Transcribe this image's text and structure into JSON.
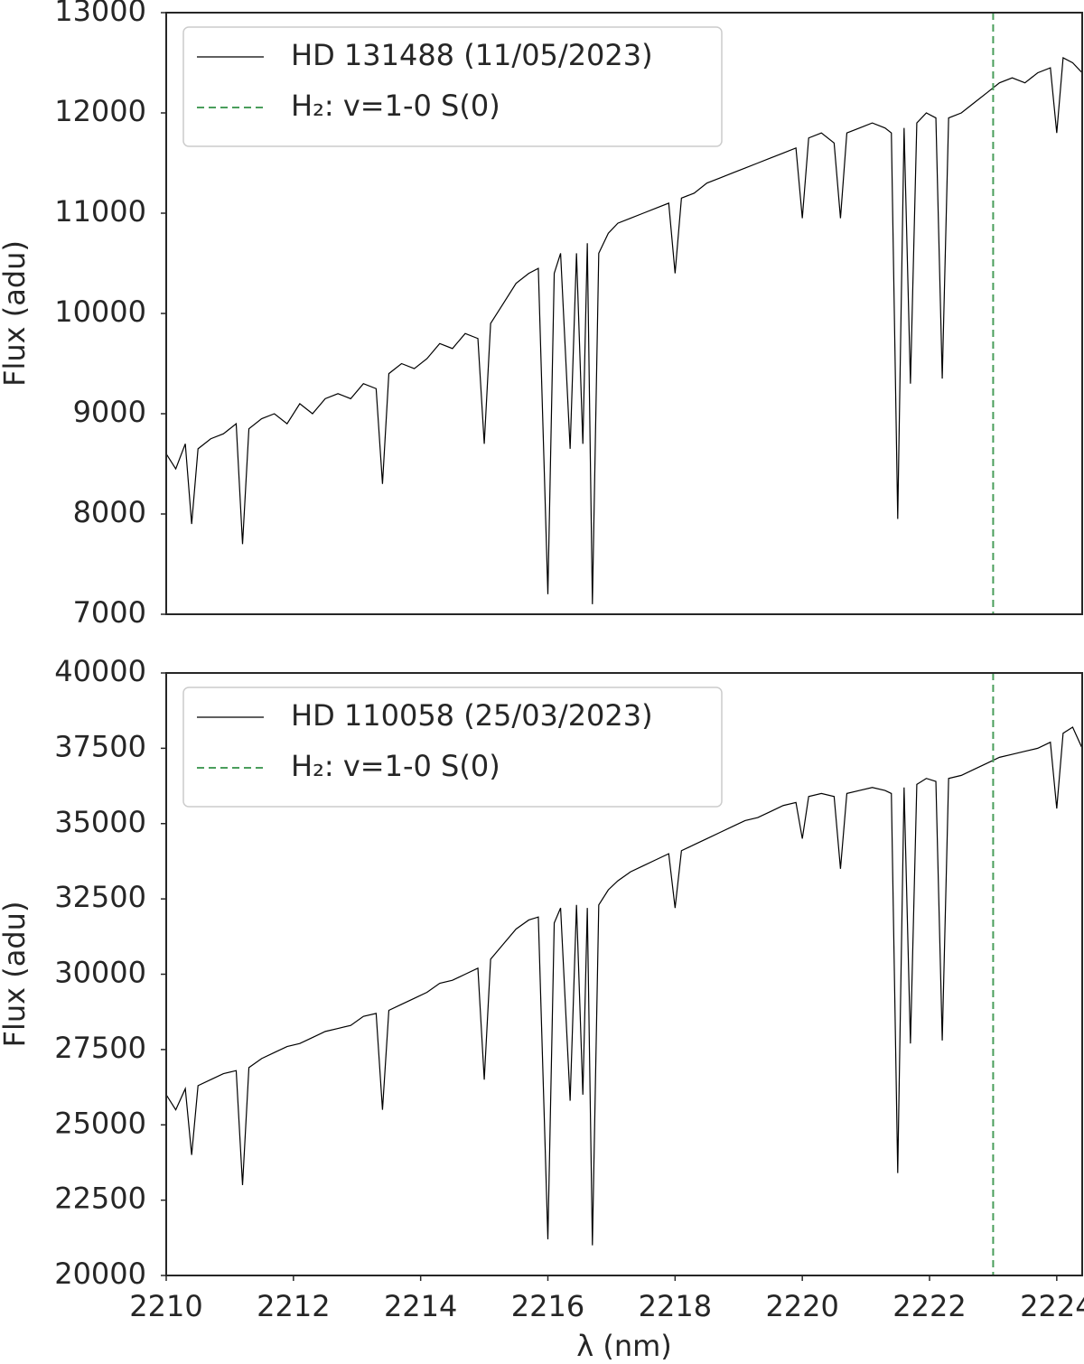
{
  "chart_data": [
    {
      "type": "line",
      "ylabel": "Flux (adu)",
      "xlim": [
        2210,
        2224.4
      ],
      "ylim": [
        7000,
        13000
      ],
      "yticks": [
        7000,
        8000,
        9000,
        10000,
        11000,
        12000,
        13000
      ],
      "legend": "upper left",
      "x": [
        2210.0,
        2210.15,
        2210.3,
        2210.4,
        2210.5,
        2210.7,
        2210.9,
        2211.1,
        2211.2,
        2211.3,
        2211.5,
        2211.7,
        2211.9,
        2212.1,
        2212.3,
        2212.5,
        2212.7,
        2212.9,
        2213.1,
        2213.3,
        2213.4,
        2213.5,
        2213.7,
        2213.9,
        2214.1,
        2214.3,
        2214.5,
        2214.7,
        2214.9,
        2215.0,
        2215.1,
        2215.3,
        2215.5,
        2215.7,
        2215.85,
        2216.0,
        2216.1,
        2216.2,
        2216.35,
        2216.45,
        2216.55,
        2216.62,
        2216.7,
        2216.8,
        2216.95,
        2217.1,
        2217.3,
        2217.5,
        2217.7,
        2217.9,
        2218.0,
        2218.1,
        2218.3,
        2218.5,
        2218.7,
        2218.9,
        2219.1,
        2219.3,
        2219.5,
        2219.7,
        2219.9,
        2220.0,
        2220.1,
        2220.3,
        2220.5,
        2220.6,
        2220.7,
        2220.9,
        2221.1,
        2221.3,
        2221.4,
        2221.5,
        2221.6,
        2221.7,
        2221.8,
        2221.95,
        2222.1,
        2222.2,
        2222.3,
        2222.5,
        2222.7,
        2222.9,
        2223.1,
        2223.3,
        2223.5,
        2223.7,
        2223.9,
        2224.0,
        2224.1,
        2224.25,
        2224.4
      ],
      "series": [
        {
          "name": "HD 131488 (11/05/2023)",
          "color": "#000000",
          "values": [
            8600,
            8450,
            8700,
            7900,
            8650,
            8750,
            8800,
            8900,
            7700,
            8850,
            8950,
            9000,
            8900,
            9100,
            9000,
            9150,
            9200,
            9150,
            9300,
            9250,
            8300,
            9400,
            9500,
            9450,
            9550,
            9700,
            9650,
            9800,
            9750,
            8700,
            9900,
            10100,
            10300,
            10400,
            10450,
            7200,
            10400,
            10600,
            8650,
            10600,
            8700,
            10700,
            7100,
            10600,
            10800,
            10900,
            10950,
            11000,
            11050,
            11100,
            10400,
            11150,
            11200,
            11300,
            11350,
            11400,
            11450,
            11500,
            11550,
            11600,
            11650,
            10950,
            11750,
            11800,
            11700,
            10950,
            11800,
            11850,
            11900,
            11850,
            11800,
            7950,
            11850,
            9300,
            11900,
            12000,
            11950,
            9350,
            11950,
            12000,
            12100,
            12200,
            12300,
            12350,
            12300,
            12400,
            12450,
            11800,
            12550,
            12500,
            12400
          ]
        }
      ],
      "vlines": [
        {
          "name": "H₂: v=1-0 S(0)",
          "x": 2223,
          "color": "#4a9e5c"
        }
      ]
    },
    {
      "type": "line",
      "xlabel": "λ (nm)",
      "ylabel": "Flux (adu)",
      "xlim": [
        2210,
        2224.4
      ],
      "ylim": [
        20000,
        40000
      ],
      "xticks": [
        2210,
        2212,
        2214,
        2216,
        2218,
        2220,
        2222,
        2224
      ],
      "yticks": [
        20000,
        22500,
        25000,
        27500,
        30000,
        32500,
        35000,
        37500,
        40000
      ],
      "legend": "upper left",
      "x": [
        2210.0,
        2210.15,
        2210.3,
        2210.4,
        2210.5,
        2210.7,
        2210.9,
        2211.1,
        2211.2,
        2211.3,
        2211.5,
        2211.7,
        2211.9,
        2212.1,
        2212.3,
        2212.5,
        2212.7,
        2212.9,
        2213.1,
        2213.3,
        2213.4,
        2213.5,
        2213.7,
        2213.9,
        2214.1,
        2214.3,
        2214.5,
        2214.7,
        2214.9,
        2215.0,
        2215.1,
        2215.3,
        2215.5,
        2215.7,
        2215.85,
        2216.0,
        2216.1,
        2216.2,
        2216.35,
        2216.45,
        2216.55,
        2216.62,
        2216.7,
        2216.8,
        2216.95,
        2217.1,
        2217.3,
        2217.5,
        2217.7,
        2217.9,
        2218.0,
        2218.1,
        2218.3,
        2218.5,
        2218.7,
        2218.9,
        2219.1,
        2219.3,
        2219.5,
        2219.7,
        2219.9,
        2220.0,
        2220.1,
        2220.3,
        2220.5,
        2220.6,
        2220.7,
        2220.9,
        2221.1,
        2221.3,
        2221.4,
        2221.5,
        2221.6,
        2221.7,
        2221.8,
        2221.95,
        2222.1,
        2222.2,
        2222.3,
        2222.5,
        2222.7,
        2222.9,
        2223.1,
        2223.3,
        2223.5,
        2223.7,
        2223.9,
        2224.0,
        2224.1,
        2224.25,
        2224.4
      ],
      "series": [
        {
          "name": "HD 110058 (25/03/2023)",
          "color": "#000000",
          "values": [
            26000,
            25500,
            26200,
            24000,
            26300,
            26500,
            26700,
            26800,
            23000,
            26900,
            27200,
            27400,
            27600,
            27700,
            27900,
            28100,
            28200,
            28300,
            28600,
            28700,
            25500,
            28800,
            29000,
            29200,
            29400,
            29700,
            29800,
            30000,
            30200,
            26500,
            30500,
            31000,
            31500,
            31800,
            31900,
            21200,
            31700,
            32200,
            25800,
            32300,
            26000,
            32200,
            21000,
            32300,
            32800,
            33100,
            33400,
            33600,
            33800,
            34000,
            32200,
            34100,
            34300,
            34500,
            34700,
            34900,
            35100,
            35200,
            35400,
            35600,
            35700,
            34500,
            35900,
            36000,
            35900,
            33500,
            36000,
            36100,
            36200,
            36100,
            36000,
            23400,
            36200,
            27700,
            36300,
            36500,
            36400,
            27800,
            36500,
            36600,
            36800,
            37000,
            37200,
            37300,
            37400,
            37500,
            37700,
            35500,
            38000,
            38200,
            37500
          ]
        }
      ],
      "vlines": [
        {
          "name": "H₂: v=1-0 S(0)",
          "x": 2223,
          "color": "#4a9e5c"
        }
      ]
    }
  ]
}
